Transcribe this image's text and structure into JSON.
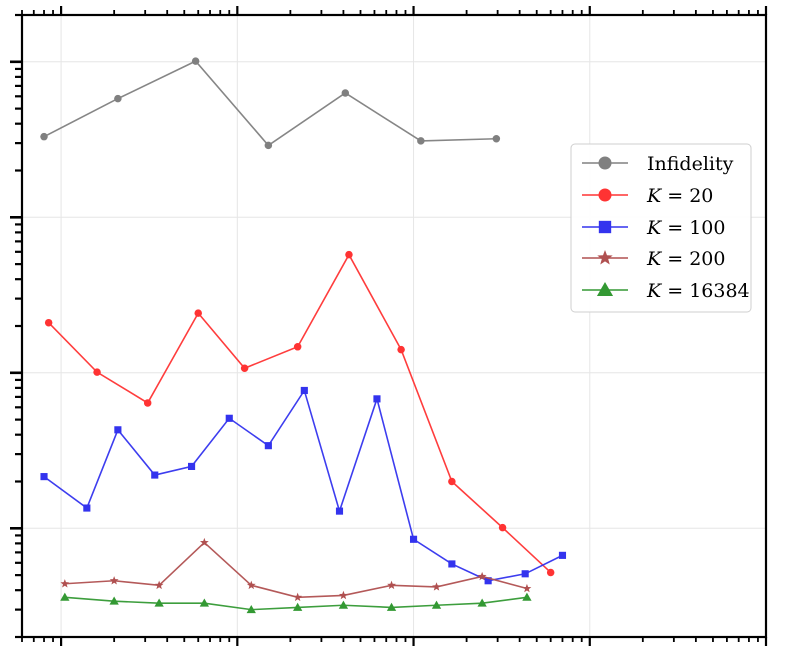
{
  "chart_data": {
    "type": "line",
    "title": "",
    "xlabel": "",
    "ylabel": "",
    "xscale": "log",
    "yscale": "log",
    "x_tick_labels_shown": false,
    "y_tick_labels_shown": false,
    "xlim": [
      0.6,
      10000
    ],
    "ylim": [
      0.0002,
      2
    ],
    "grid": true,
    "legend": {
      "location": "right",
      "entries": [
        {
          "text": "Infidelity",
          "italic_prefix": "",
          "value": ""
        },
        {
          "text": "",
          "italic_prefix": "K",
          "value": "20"
        },
        {
          "text": "",
          "italic_prefix": "K",
          "value": "100"
        },
        {
          "text": "",
          "italic_prefix": "K",
          "value": "200"
        },
        {
          "text": "",
          "italic_prefix": "K",
          "value": "16384"
        }
      ]
    },
    "series": [
      {
        "name": "Infidelity",
        "color": "#808080",
        "marker": "circle",
        "x": [
          0.8,
          2.1,
          5.8,
          15,
          41,
          110,
          295
        ],
        "y": [
          0.33,
          0.58,
          1.01,
          0.29,
          0.63,
          0.31,
          0.32
        ]
      },
      {
        "name": "K = 20",
        "color": "#ff3333",
        "marker": "circle",
        "x": [
          0.85,
          1.6,
          3.1,
          6.0,
          11,
          22,
          43,
          85,
          165,
          320,
          600
        ],
        "y": [
          0.021,
          0.0101,
          0.0064,
          0.0242,
          0.0107,
          0.0147,
          0.0575,
          0.0141,
          0.002,
          0.00101,
          0.00052
        ]
      },
      {
        "name": "K = 100",
        "color": "#3333ee",
        "marker": "square",
        "x": [
          0.8,
          1.4,
          2.1,
          3.4,
          5.5,
          9.0,
          15,
          24,
          38,
          62,
          100,
          165,
          265,
          430,
          700
        ],
        "y": [
          0.00215,
          0.00135,
          0.0043,
          0.0022,
          0.0025,
          0.0051,
          0.0034,
          0.0077,
          0.00129,
          0.0068,
          0.00085,
          0.00059,
          0.00046,
          0.00051,
          0.00067
        ]
      },
      {
        "name": "K = 200",
        "color": "#b05050",
        "marker": "star",
        "x": [
          1.05,
          2.0,
          3.6,
          6.5,
          12,
          22,
          40,
          75,
          135,
          245,
          440
        ],
        "y": [
          0.00044,
          0.00046,
          0.00043,
          0.00081,
          0.00043,
          0.00036,
          0.00037,
          0.00043,
          0.00042,
          0.00049,
          0.00041
        ]
      },
      {
        "name": "K = 16384",
        "color": "#339933",
        "marker": "triangle",
        "x": [
          1.05,
          2.0,
          3.6,
          6.5,
          12,
          22,
          40,
          75,
          135,
          245,
          440
        ],
        "y": [
          0.00036,
          0.00034,
          0.00033,
          0.00033,
          0.0003,
          0.00031,
          0.00032,
          0.00031,
          0.00032,
          0.00033,
          0.00036
        ]
      }
    ]
  }
}
